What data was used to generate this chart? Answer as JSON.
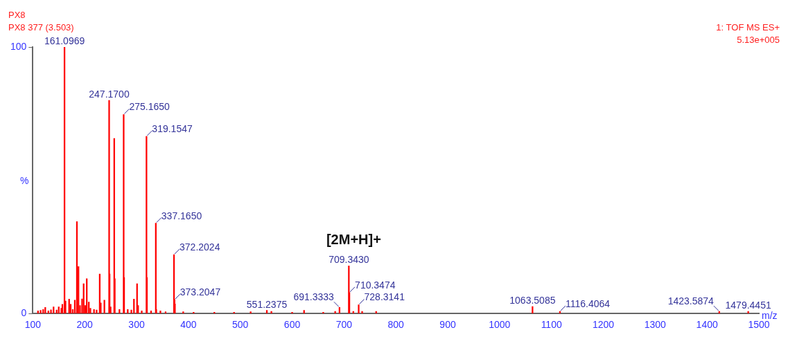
{
  "chart_data": {
    "type": "bar",
    "title": "PX8",
    "subtitle": "PX8 377 (3.503)",
    "xlabel": "m/z",
    "ylabel": "%",
    "x": [
      110,
      115,
      120,
      124,
      130,
      135,
      140,
      146,
      150,
      155,
      157,
      161.0969,
      163,
      170,
      173,
      177,
      181,
      185,
      188,
      191,
      195,
      198,
      201,
      204,
      208,
      211,
      218,
      223,
      229,
      231,
      238,
      247.17,
      248,
      250,
      257,
      258,
      267,
      275.165,
      276,
      283,
      290,
      295,
      301,
      303,
      310,
      319.1547,
      320,
      328,
      337.165,
      338,
      346,
      356,
      372.2024,
      373.2047,
      374,
      390,
      410,
      450,
      488,
      520,
      551.2375,
      560,
      600,
      623,
      660,
      683,
      691.3333,
      709.343,
      710.3474,
      718,
      728.3141,
      735,
      762,
      1063.5085,
      1116.4064,
      1423.5874,
      1479.4451
    ],
    "values": [
      1,
      1.2,
      1.5,
      2.3,
      1,
      1.4,
      2.5,
      1.3,
      2.5,
      2,
      3.5,
      100,
      4.7,
      5.4,
      3.5,
      1.5,
      5,
      34.5,
      17.6,
      3,
      5.5,
      11.2,
      3,
      13.1,
      4.3,
      2,
      1.5,
      1.3,
      14.8,
      4,
      5,
      80,
      14.8,
      2.5,
      65.7,
      13.1,
      1.5,
      74.7,
      13.5,
      1.5,
      1.3,
      5.4,
      11.2,
      3,
      1,
      66.5,
      13.5,
      1,
      33.9,
      1.5,
      1,
      0.7,
      22.1,
      5.2,
      3.6,
      0.7,
      0.5,
      0.5,
      0.5,
      0.7,
      1.2,
      0.8,
      0.5,
      1.2,
      0.5,
      0.8,
      2.3,
      17.9,
      7.9,
      0.8,
      3.3,
      0.8,
      0.8,
      2.6,
      0.8,
      0.8,
      0.8
    ],
    "color": "#ff0000",
    "xlim": [
      100,
      1500
    ],
    "xticks": [
      100,
      200,
      300,
      400,
      500,
      600,
      700,
      800,
      900,
      1000,
      1100,
      1200,
      1300,
      1400,
      1500
    ],
    "ylim": [
      0,
      100
    ],
    "yticks": [
      0,
      100
    ],
    "grid": false,
    "legend": false,
    "annotations": [
      "1: TOF MS ES+",
      "5.13e+005",
      "[2M+H]+",
      {
        "text": "161.0969",
        "x": 161.0969,
        "y": 100
      },
      {
        "text": "247.1700",
        "x": 247.17,
        "y": 80
      },
      {
        "text": "275.1650",
        "x": 275.165,
        "y": 74.7
      },
      {
        "text": "319.1547",
        "x": 319.1547,
        "y": 66.5
      },
      {
        "text": "337.1650",
        "x": 337.165,
        "y": 33.9
      },
      {
        "text": "372.2024",
        "x": 372.2024,
        "y": 22.1
      },
      {
        "text": "373.2047",
        "x": 373.2047,
        "y": 5.2
      },
      {
        "text": "551.2375",
        "x": 551.2375,
        "y": 1.2
      },
      {
        "text": "691.3333",
        "x": 691.3333,
        "y": 2.3
      },
      {
        "text": "709.3430",
        "x": 709.343,
        "y": 17.9
      },
      {
        "text": "710.3474",
        "x": 710.3474,
        "y": 7.9
      },
      {
        "text": "728.3141",
        "x": 728.3141,
        "y": 3.3
      },
      {
        "text": "1063.5085",
        "x": 1063.5085,
        "y": 2.6
      },
      {
        "text": "1116.4064",
        "x": 1116.4064,
        "y": 0.8
      },
      {
        "text": "1423.5874",
        "x": 1423.5874,
        "y": 0.8
      },
      {
        "text": "1479.4451",
        "x": 1479.4451,
        "y": 0.8
      }
    ]
  }
}
